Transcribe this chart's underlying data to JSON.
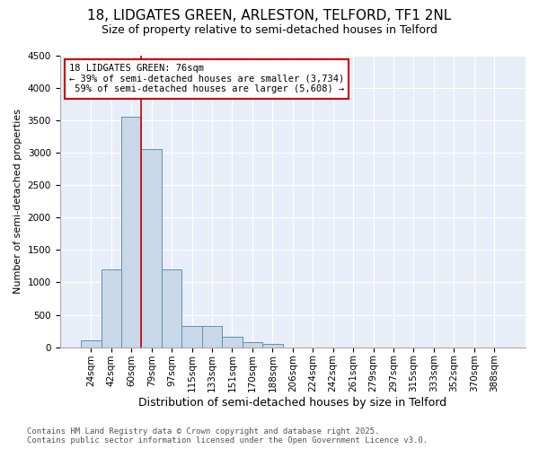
{
  "title1": "18, LIDGATES GREEN, ARLESTON, TELFORD, TF1 2NL",
  "title2": "Size of property relative to semi-detached houses in Telford",
  "xlabel": "Distribution of semi-detached houses by size in Telford",
  "ylabel": "Number of semi-detached properties",
  "categories": [
    "24sqm",
    "42sqm",
    "60sqm",
    "79sqm",
    "97sqm",
    "115sqm",
    "133sqm",
    "151sqm",
    "170sqm",
    "188sqm",
    "206sqm",
    "224sqm",
    "242sqm",
    "261sqm",
    "279sqm",
    "297sqm",
    "315sqm",
    "333sqm",
    "352sqm",
    "370sqm",
    "388sqm"
  ],
  "values": [
    100,
    1200,
    3550,
    3050,
    1200,
    330,
    330,
    160,
    75,
    50,
    0,
    0,
    0,
    0,
    0,
    0,
    0,
    0,
    0,
    0,
    0
  ],
  "bar_color": "#c8d8e8",
  "bar_edge_color": "#6090b0",
  "vline_position": 2.5,
  "vline_color": "#cc0000",
  "annotation_text": "18 LIDGATES GREEN: 76sqm\n← 39% of semi-detached houses are smaller (3,734)\n 59% of semi-detached houses are larger (5,608) →",
  "annotation_box_color": "#ffffff",
  "annotation_box_edge": "#cc0000",
  "ylim_max": 4500,
  "yticks": [
    0,
    500,
    1000,
    1500,
    2000,
    2500,
    3000,
    3500,
    4000,
    4500
  ],
  "bg_color": "#e8eef8",
  "footer": "Contains HM Land Registry data © Crown copyright and database right 2025.\nContains public sector information licensed under the Open Government Licence v3.0.",
  "title1_fontsize": 11,
  "title2_fontsize": 9,
  "xlabel_fontsize": 9,
  "ylabel_fontsize": 8,
  "tick_fontsize": 7.5,
  "annotation_fontsize": 7.5,
  "footer_fontsize": 6.5
}
